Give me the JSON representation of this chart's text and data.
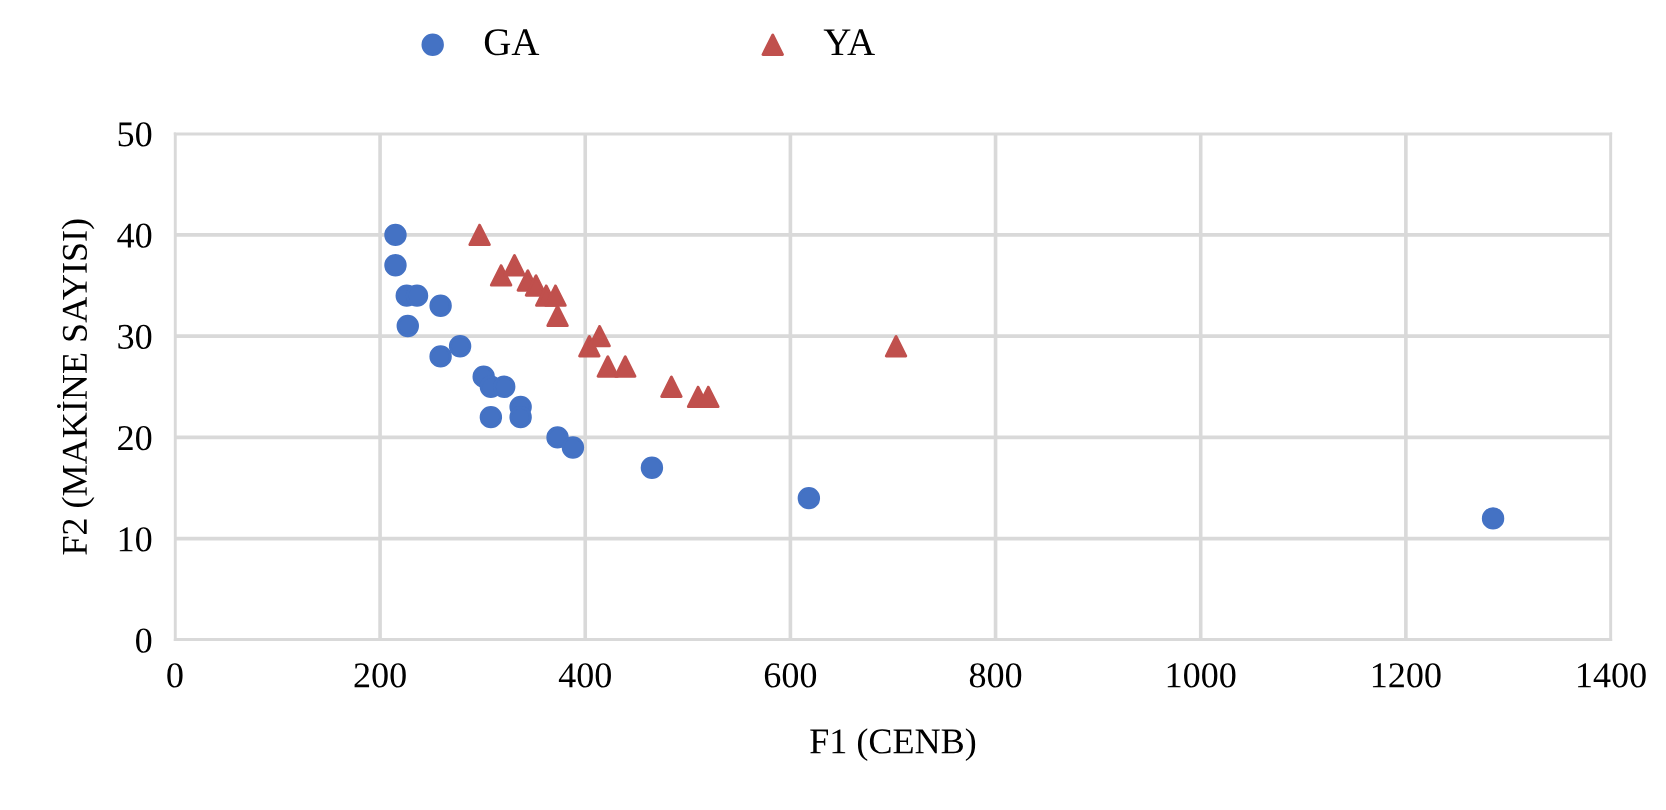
{
  "chart_data": {
    "type": "scatter",
    "xlabel": "F1 (CENB)",
    "ylabel": "F2 (MAKİNE SAYISI)",
    "xlim": [
      0,
      1400
    ],
    "xticks": [
      0,
      200,
      400,
      600,
      800,
      1000,
      1200,
      1400
    ],
    "ylim": [
      0,
      50
    ],
    "yticks": [
      0,
      10,
      20,
      30,
      40,
      50
    ],
    "grid": true,
    "legend": "top",
    "series": [
      {
        "name": "GA",
        "color": "#4472c4",
        "marker": "circle",
        "x": [
          215,
          215,
          226,
          236,
          259,
          227,
          259,
          278,
          301,
          308,
          321,
          308,
          337,
          337,
          373,
          388,
          465,
          618,
          1285
        ],
        "values": [
          40,
          37,
          34,
          34,
          33,
          31,
          28,
          29,
          26,
          25,
          25,
          22,
          23,
          22,
          20,
          19,
          17,
          14,
          12
        ]
      },
      {
        "name": "YA",
        "color": "#c0504d",
        "marker": "triangle",
        "x": [
          297,
          318,
          331,
          344,
          352,
          362,
          371,
          373,
          404,
          414,
          422,
          439,
          484,
          510,
          520,
          703
        ],
        "values": [
          40,
          36,
          37,
          35.5,
          35,
          34,
          34,
          32,
          29,
          30,
          27,
          27,
          25,
          24,
          24,
          29
        ]
      }
    ]
  }
}
